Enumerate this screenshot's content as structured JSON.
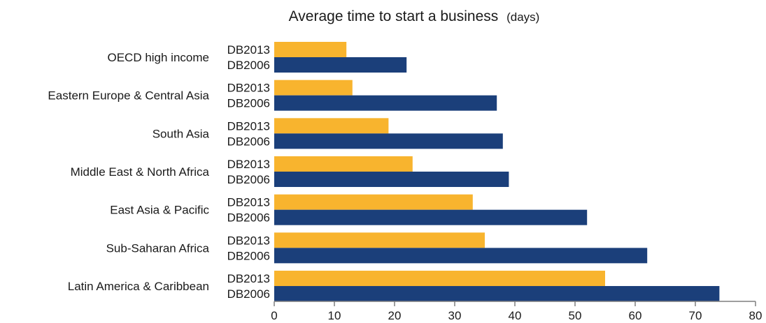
{
  "chart_data": {
    "type": "bar",
    "orientation": "horizontal",
    "title": "Average time to start a business",
    "title_unit": "(days)",
    "categories": [
      "OECD high income",
      "Eastern Europe & Central Asia",
      "South Asia",
      "Middle East & North Africa",
      "East Asia & Pacific",
      "Sub-Saharan Africa",
      "Latin America & Caribbean"
    ],
    "series": [
      {
        "name": "DB2013",
        "color": "#F8B42E",
        "values": [
          12,
          13,
          19,
          23,
          33,
          35,
          55
        ]
      },
      {
        "name": "DB2006",
        "color": "#1B3F7A",
        "values": [
          22,
          37,
          38,
          39,
          52,
          62,
          74
        ]
      }
    ],
    "xlim": [
      0,
      80
    ],
    "xticks": [
      0,
      10,
      20,
      30,
      40,
      50,
      60,
      70,
      80
    ],
    "grid": false,
    "legend": "none",
    "axis_color": "#7f7f7f"
  }
}
